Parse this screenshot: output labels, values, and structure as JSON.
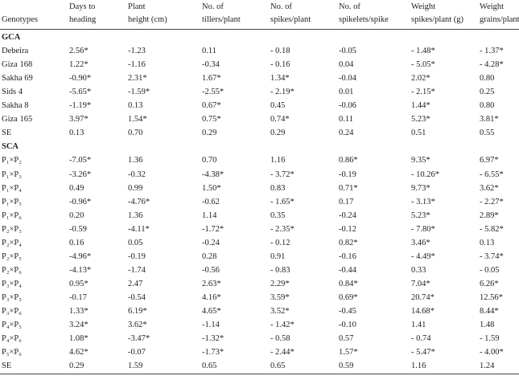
{
  "table": {
    "header": [
      [
        "",
        "Genotypes"
      ],
      [
        "Days to",
        "heading"
      ],
      [
        "Plant",
        "height (cm)"
      ],
      [
        "No. of",
        "tillers/plant"
      ],
      [
        "No. of",
        "spikes/plant"
      ],
      [
        "No. of",
        "spikelets/spike"
      ],
      [
        "Weight",
        "spikes/plant (g)"
      ],
      [
        "Weight",
        "grains/plant"
      ]
    ],
    "sections": [
      {
        "title": "GCA",
        "rows": [
          [
            "Debeira",
            "2.56*",
            "-1.23",
            "0.11",
            "- 0.18",
            "-0.05",
            "- 1.48*",
            "- 1.37*"
          ],
          [
            "Giza 168",
            "1.22*",
            "-1.16",
            "-0.34",
            "- 0.16",
            "0.04",
            "- 5.05*",
            "- 4.28*"
          ],
          [
            "Sakha 69",
            "-0.90*",
            "2.31*",
            "1.67*",
            "1.34*",
            "-0.04",
            "2.02*",
            "0.80"
          ],
          [
            "Sids 4",
            "-5.65*",
            "-1.59*",
            "-2.55*",
            "- 2.19*",
            "0.01",
            "- 2.15*",
            "0.25"
          ],
          [
            "Sakha 8",
            "-1.19*",
            "0.13",
            "0.67*",
            "0.45",
            "-0.06",
            "1.44*",
            "0.80"
          ],
          [
            "Giza 165",
            "3.97*",
            "1.54*",
            "0.75*",
            "0.74*",
            "0.11",
            "5.23*",
            "3.81*"
          ],
          [
            "SE",
            "0.13",
            "0.70",
            "0.29",
            "0.29",
            "0.24",
            "0.51",
            "0.55"
          ]
        ]
      },
      {
        "title": "SCA",
        "rows": [
          [
            "P₁×P₂",
            "-7.05*",
            "1.36",
            "0.70",
            "1.16",
            "0.86*",
            "9.35*",
            "6.97*"
          ],
          [
            "P₁×P₃",
            "-3.26*",
            "-0.32",
            "-4.38*",
            "- 3.72*",
            "-0.19",
            "- 10.26*",
            "- 6.55*"
          ],
          [
            "P₁×P₄",
            "0.49",
            "0.99",
            "1.50*",
            "0.83",
            "0.71*",
            "9.73*",
            "3.62*"
          ],
          [
            "P₁×P₅",
            "-0.96*",
            "-4.76*",
            "-0.62",
            "- 1.65*",
            "0.17",
            "- 3.13*",
            "- 2.27*"
          ],
          [
            "P₁×P₆",
            "0.20",
            "1.36",
            "1.14",
            "0.35",
            "-0.24",
            "5.23*",
            "2.89*"
          ],
          [
            "P₂×P₃",
            "-0.59",
            "-4.11*",
            "-1.72*",
            "- 2.35*",
            "-0.12",
            "- 7.80*",
            "- 5.82*"
          ],
          [
            "P₂×P₄",
            "0.16",
            "0.05",
            "-0.24",
            "- 0.12",
            "0.82*",
            "3.46*",
            "0.13"
          ],
          [
            "P₂×P₅",
            "-4.96*",
            "-0.19",
            "0.28",
            "0.91",
            "-0.16",
            "- 4.49*",
            "- 3.74*"
          ],
          [
            "P₂×P₆",
            "-4.13*",
            "-1.74",
            "-0.56",
            "- 0.83",
            "-0.44",
            "0.33",
            "- 0.05"
          ],
          [
            "P₃×P₄",
            "0.95*",
            "2.47",
            "2.63*",
            "2.29*",
            "0.84*",
            "7.04*",
            "6.26*"
          ],
          [
            "P₃×P₅",
            "-0.17",
            "-0.54",
            "4.16*",
            "3.59*",
            "0.69*",
            "20.74*",
            "12.56*"
          ],
          [
            "P₃×P₆",
            "1.33*",
            "6.19*",
            "4.65*",
            "3.52*",
            "-0.45",
            "14.68*",
            "8.44*"
          ],
          [
            "P₄×P₅",
            "3.24*",
            "3.62*",
            "-1.14",
            "- 1.42*",
            "-0.10",
            "1.41",
            "1.48"
          ],
          [
            "P₄×P₆",
            "1.08*",
            "-3.47*",
            "-1.32*",
            "- 0.58",
            "0.57",
            "- 0.74",
            "- 1.59"
          ],
          [
            "P₅×P₆",
            "4.62*",
            "-0.07",
            "-1.73*",
            "- 2.44*",
            "1.57*",
            "- 5.47*",
            "- 4.00*"
          ],
          [
            "SE",
            "0.29",
            "1.59",
            "0.65",
            "0.65",
            "0.59",
            "1.16",
            "1.24"
          ]
        ]
      }
    ]
  }
}
